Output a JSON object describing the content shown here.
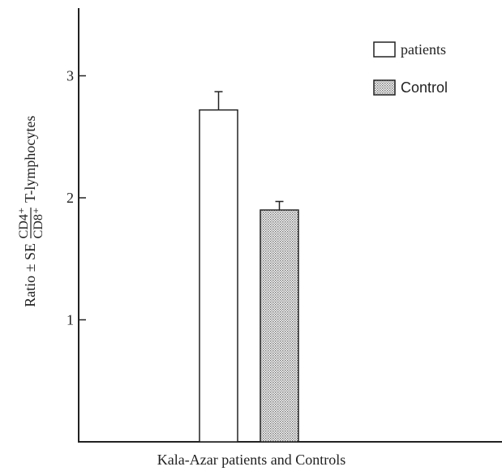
{
  "chart_data": {
    "type": "bar",
    "xlabel": "Kala-Azar patients and Controls",
    "ylabel": {
      "prefix": "Ratio ± SE",
      "numerator": "CD4⁺",
      "denominator": "CD8⁺",
      "suffix": "T-lymphocytes"
    },
    "ylim": [
      0,
      3.5
    ],
    "yticks": [
      {
        "value": 1,
        "label": "1"
      },
      {
        "value": 2,
        "label": "2"
      },
      {
        "value": 3,
        "label": "3"
      }
    ],
    "grid": false,
    "legend_position": "top-right",
    "series": [
      {
        "name": "patients",
        "value": 2.72,
        "error": 0.15,
        "fill": "#ffffff"
      },
      {
        "name": "Control",
        "value": 1.9,
        "error": 0.07,
        "fill": "#bdbdbd"
      }
    ]
  }
}
